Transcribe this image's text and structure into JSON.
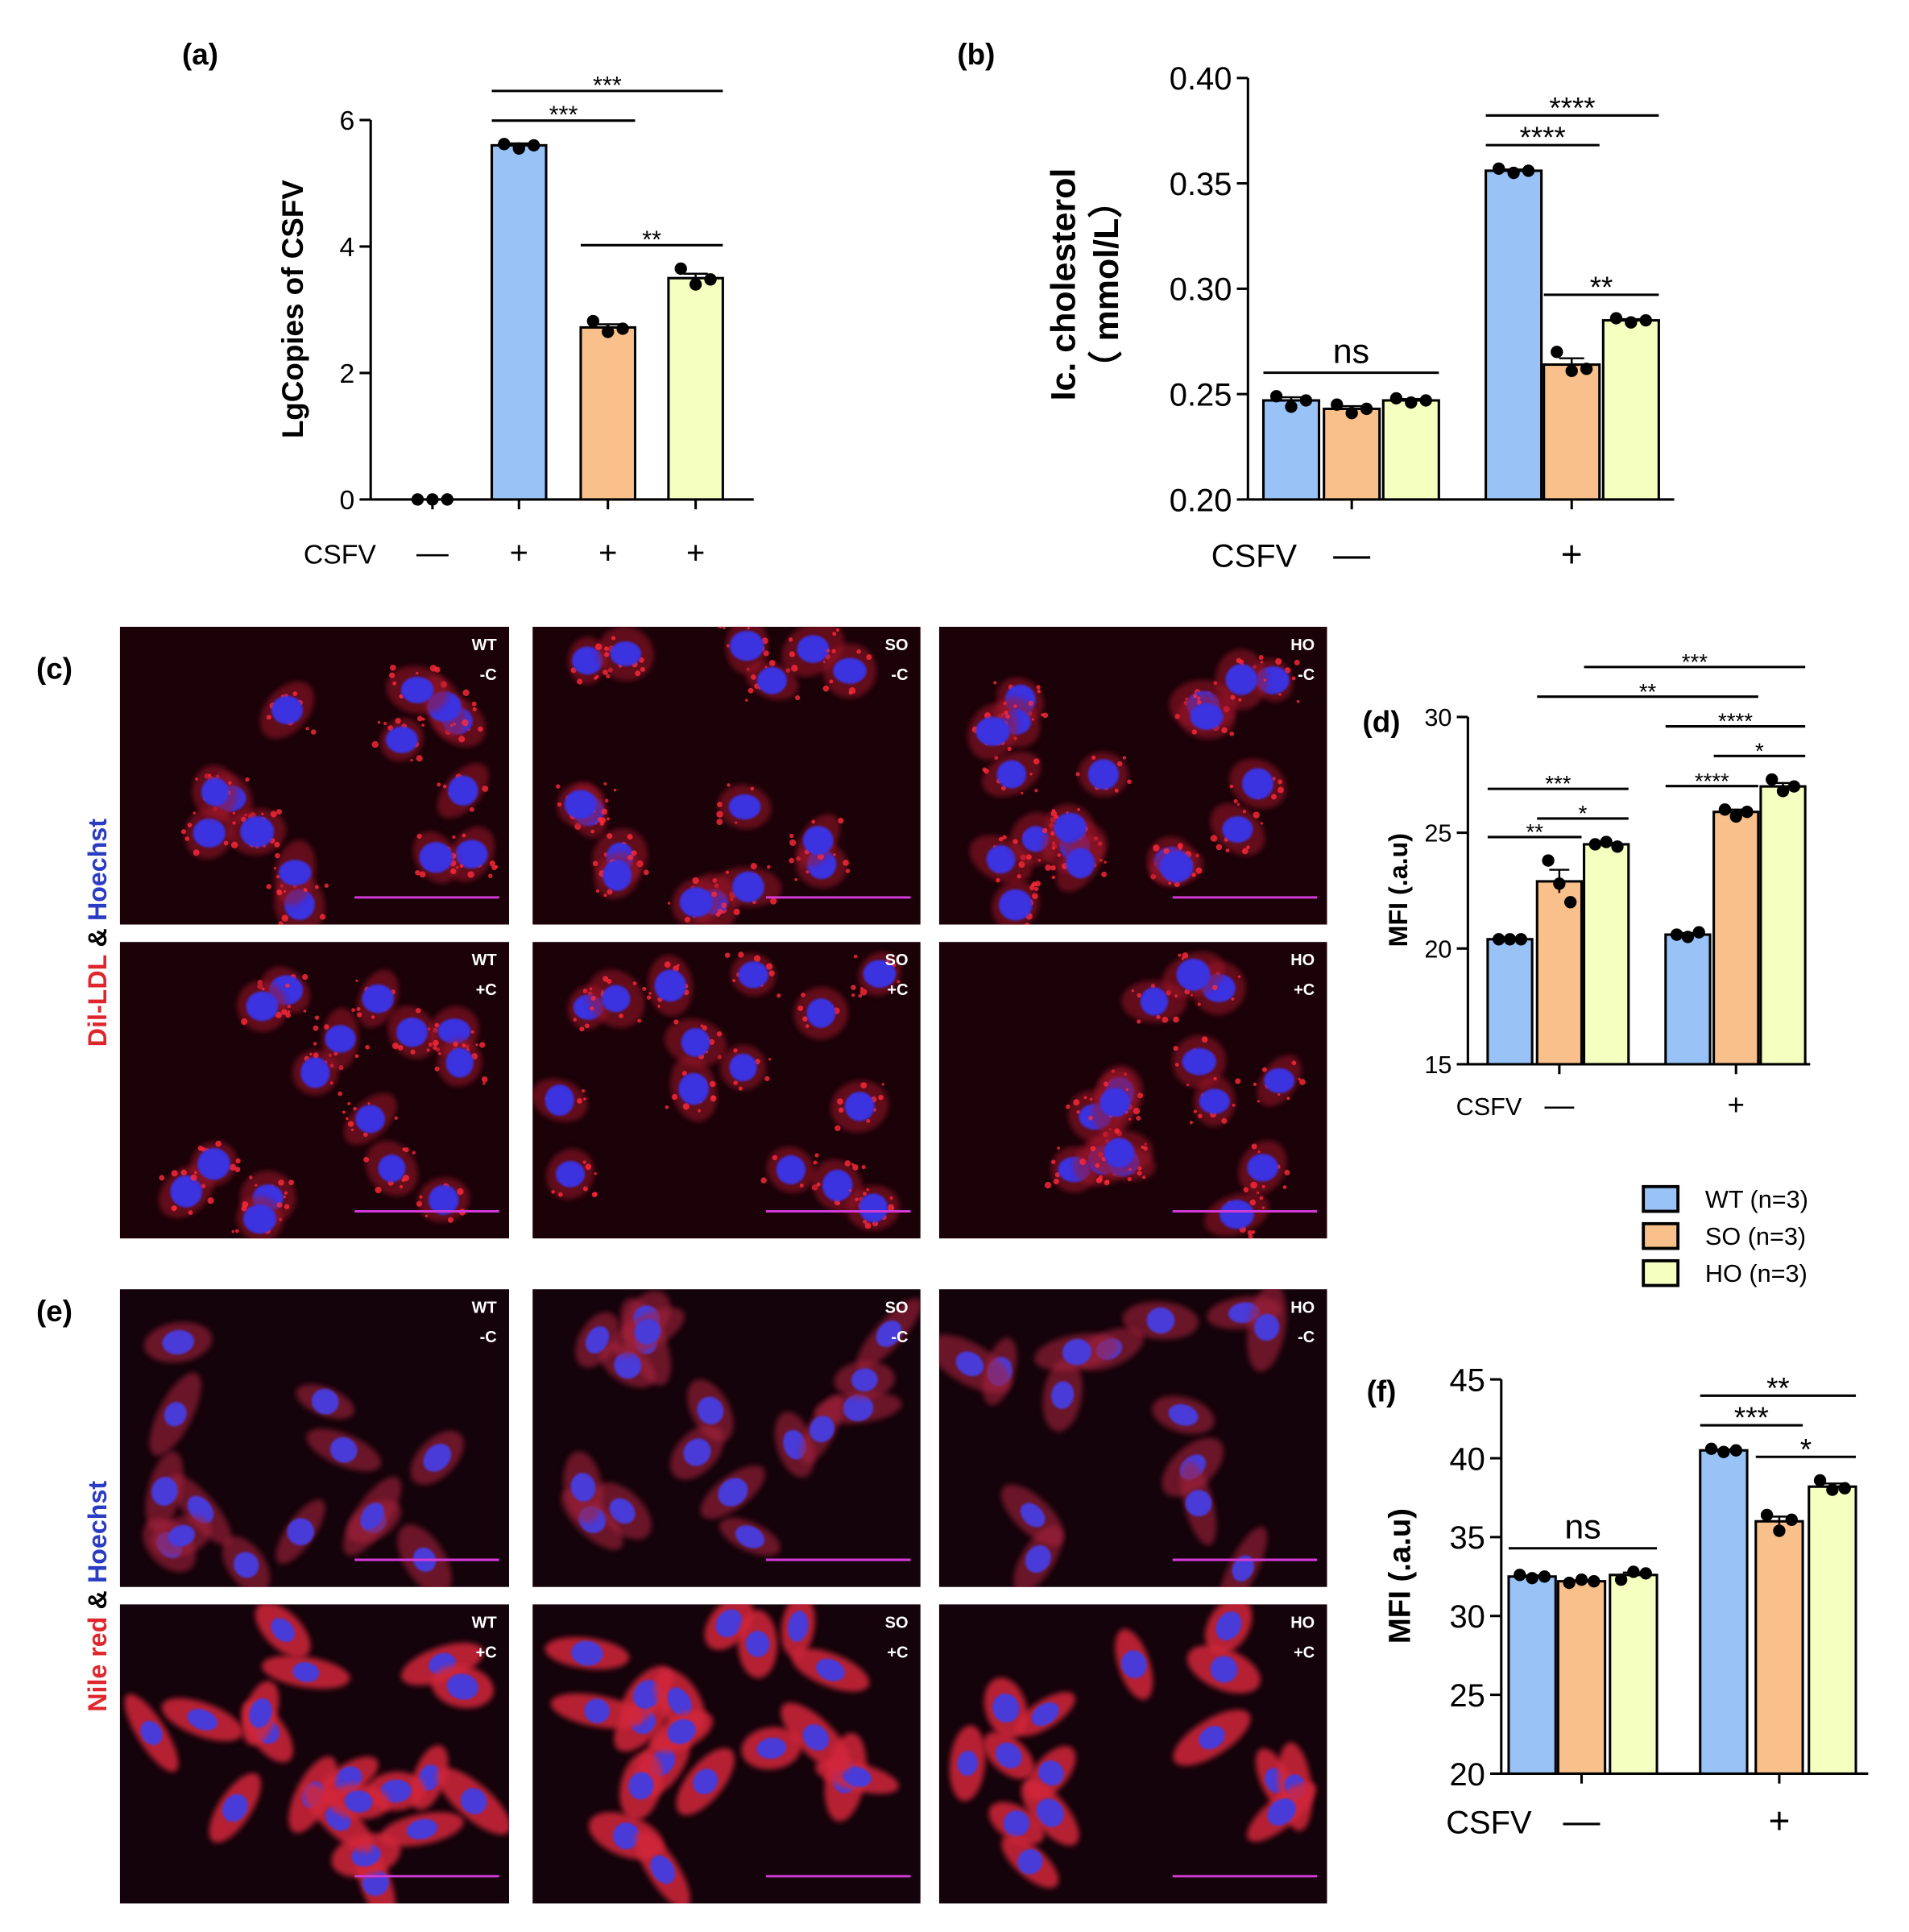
{
  "chart_data": [
    {
      "type": "bar",
      "panel": "(a)",
      "y_label": "LgCopies of CSFV",
      "x_row_label": "CSFV",
      "categories": [
        "—",
        "+",
        "+",
        "+"
      ],
      "values": [
        0,
        5.6,
        2.72,
        3.5
      ],
      "errors": [
        0,
        0.03,
        0.05,
        0.07
      ],
      "points": [
        [
          0,
          0,
          0
        ],
        [
          5.62,
          5.55,
          5.6
        ],
        [
          2.82,
          2.65,
          2.7
        ],
        [
          3.65,
          3.4,
          3.48
        ]
      ],
      "colors": [
        "#ffffff",
        "#99c3f7",
        "#f9c08b",
        "#f4ffc0"
      ],
      "ylim": [
        0,
        6
      ],
      "yticks": [
        0,
        2,
        4,
        6
      ],
      "annotations": [
        {
          "text": "***",
          "bars": [
            1,
            2
          ]
        },
        {
          "text": "**",
          "bars": [
            2,
            3
          ]
        },
        {
          "text": "***",
          "bars": [
            1,
            3
          ]
        }
      ]
    },
    {
      "type": "grouped_bar",
      "panel": "(b)",
      "y_label": [
        "Ic. cholesterol",
        "（ mmol/L）"
      ],
      "x_row_label": "CSFV",
      "categories": [
        "—",
        "+"
      ],
      "series": [
        {
          "values": [
            0.247,
            0.356
          ],
          "errors": [
            0.0015,
            0.0006
          ],
          "points": [
            [
              0.249,
              0.244,
              0.247
            ],
            [
              0.357,
              0.355,
              0.356
            ]
          ]
        },
        {
          "values": [
            0.243,
            0.264
          ],
          "errors": [
            0.0013,
            0.003
          ],
          "points": [
            [
              0.245,
              0.241,
              0.243
            ],
            [
              0.27,
              0.261,
              0.262
            ]
          ]
        },
        {
          "values": [
            0.247,
            0.285
          ],
          "errors": [
            0.0007,
            0.0006
          ],
          "points": [
            [
              0.248,
              0.246,
              0.247
            ],
            [
              0.286,
              0.284,
              0.285
            ]
          ]
        }
      ],
      "ylim": [
        0.2,
        0.4
      ],
      "yticks": [
        {
          "value": 0.2,
          "label": "0.20"
        },
        {
          "value": 0.25,
          "label": "0.25"
        },
        {
          "value": 0.3,
          "label": "0.30"
        },
        {
          "value": 0.35,
          "label": "0.35"
        },
        {
          "value": 0.4,
          "label": "0.40"
        }
      ],
      "annotations": [
        {
          "text": "ns",
          "bars": [
            0,
            2
          ]
        },
        {
          "text": "****",
          "bars": [
            3,
            4
          ]
        },
        {
          "text": "**",
          "bars": [
            4,
            5
          ]
        },
        {
          "text": "****",
          "bars": [
            3,
            5
          ]
        }
      ]
    },
    {
      "type": "grouped_bar",
      "panel": "(d)",
      "y_label": "MFI (.a.u)",
      "x_row_label": "CSFV",
      "categories": [
        "—",
        "+"
      ],
      "series": [
        {
          "values": [
            20.4,
            20.6
          ],
          "errors": [
            0.05,
            0.07
          ],
          "points": [
            [
              20.4,
              20.4,
              20.4
            ],
            [
              20.6,
              20.5,
              20.7
            ]
          ]
        },
        {
          "values": [
            22.9,
            25.9
          ],
          "errors": [
            0.5,
            0.1
          ],
          "points": [
            [
              23.8,
              22.8,
              22.0
            ],
            [
              26.0,
              25.7,
              25.9
            ]
          ]
        },
        {
          "values": [
            24.5,
            27
          ],
          "errors": [
            0.06,
            0.15
          ],
          "points": [
            [
              24.5,
              24.6,
              24.4
            ],
            [
              27.3,
              26.8,
              27.0
            ]
          ]
        }
      ],
      "ylim": [
        15,
        30
      ],
      "yticks": [
        15,
        20,
        25,
        30
      ],
      "annotations": [
        {
          "text": "**",
          "bars": [
            0,
            1
          ]
        },
        {
          "text": "*",
          "bars": [
            1,
            2
          ]
        },
        {
          "text": "***",
          "bars": [
            0,
            2
          ]
        },
        {
          "text": "****",
          "bars": [
            3,
            4
          ]
        },
        {
          "text": "*",
          "bars": [
            4,
            5
          ]
        },
        {
          "text": "****",
          "bars": [
            3,
            5
          ]
        },
        {
          "text": "**",
          "bars": [
            1,
            4
          ]
        },
        {
          "text": "***",
          "bars": [
            2,
            5
          ]
        }
      ]
    },
    {
      "type": "grouped_bar",
      "panel": "(f)",
      "y_label": "MFI (.a.u)",
      "x_row_label": "CSFV",
      "categories": [
        "—",
        "+"
      ],
      "series": [
        {
          "values": [
            32.5,
            40.5
          ],
          "errors": [
            0.07,
            0.06
          ],
          "points": [
            [
              32.6,
              32.4,
              32.5
            ],
            [
              40.6,
              40.4,
              40.5
            ]
          ]
        },
        {
          "values": [
            32.2,
            36
          ],
          "errors": [
            0.06,
            0.3
          ],
          "points": [
            [
              32.1,
              32.3,
              32.2
            ],
            [
              36.4,
              35.4,
              36.1
            ]
          ]
        },
        {
          "values": [
            32.6,
            38.2
          ],
          "errors": [
            0.15,
            0.2
          ],
          "points": [
            [
              32.3,
              32.8,
              32.7
            ],
            [
              38.6,
              38.0,
              38.1
            ]
          ]
        }
      ],
      "ylim": [
        20,
        45
      ],
      "yticks": [
        20,
        25,
        30,
        35,
        40,
        45
      ],
      "annotations": [
        {
          "text": "ns",
          "bars": [
            0,
            2
          ]
        },
        {
          "text": "***",
          "bars": [
            3,
            4
          ]
        },
        {
          "text": "*",
          "bars": [
            4,
            5
          ]
        },
        {
          "text": "**",
          "bars": [
            3,
            5
          ]
        }
      ]
    }
  ],
  "legend": {
    "entries": [
      "WT (n=3)",
      "SO (n=3)",
      "HO (n=3)"
    ],
    "colors": [
      "#99c3f7",
      "#f9c08b",
      "#f4ffc0"
    ]
  },
  "micrographs": [
    {
      "label": "(c)",
      "stain": [
        "Dil-LDL",
        "&",
        "Hoechst"
      ],
      "images": [
        [
          "WT",
          "-C"
        ],
        [
          "SO",
          "-C"
        ],
        [
          "HO",
          "-C"
        ],
        [
          "WT",
          "+C"
        ],
        [
          "SO",
          "+C"
        ],
        [
          "HO",
          "+C"
        ]
      ]
    },
    {
      "label": "(e)",
      "stain": [
        "Nile red",
        "&",
        "Hoechst"
      ],
      "images": [
        [
          "WT",
          "-C"
        ],
        [
          "SO",
          "-C"
        ],
        [
          "HO",
          "-C"
        ],
        [
          "WT",
          "+C"
        ],
        [
          "SO",
          "+C"
        ],
        [
          "HO",
          "+C"
        ]
      ]
    }
  ]
}
